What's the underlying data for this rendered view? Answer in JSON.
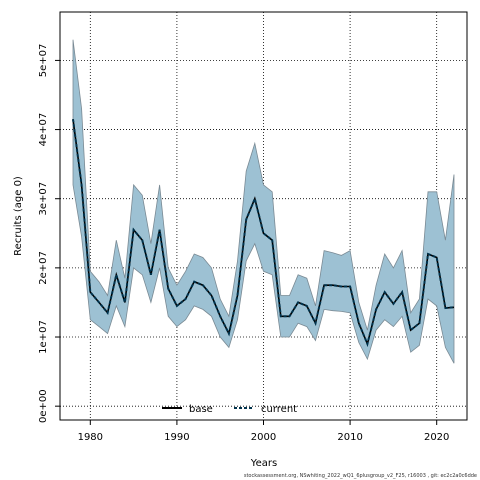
{
  "chart_data": {
    "type": "line",
    "xlabel": "Years",
    "ylabel": "Recruits (age 0)",
    "xlim": [
      1976.5,
      2023.5
    ],
    "ylim": [
      -2000000,
      57000000
    ],
    "x_ticks": [
      1980,
      1990,
      2000,
      2010,
      2020
    ],
    "x_tick_labels": [
      "1980",
      "1990",
      "2000",
      "2010",
      "2020"
    ],
    "y_ticks": [
      0,
      10000000,
      20000000,
      30000000,
      40000000,
      50000000
    ],
    "y_tick_labels": [
      "0e+00",
      "1e+07",
      "2e+07",
      "3e+07",
      "4e+07",
      "5e+07"
    ],
    "grid": true,
    "legend_position": "bottom-center",
    "colors": {
      "band": "#9dc1d3",
      "band_edge": "#7a8a94",
      "line": "#00334d"
    },
    "years": [
      1978,
      1979,
      1980,
      1981,
      1982,
      1983,
      1984,
      1985,
      1986,
      1987,
      1988,
      1989,
      1990,
      1991,
      1992,
      1993,
      1994,
      1995,
      1996,
      1997,
      1998,
      1999,
      2000,
      2001,
      2002,
      2003,
      2004,
      2005,
      2006,
      2007,
      2008,
      2009,
      2010,
      2011,
      2012,
      2013,
      2014,
      2015,
      2016,
      2017,
      2018,
      2019,
      2020,
      2021,
      2022
    ],
    "series": [
      {
        "name": "base",
        "line_style": "solid",
        "values": [
          41500000,
          32000000,
          16500000,
          15000000,
          13500000,
          19000000,
          15000000,
          25500000,
          24000000,
          19000000,
          25500000,
          17000000,
          14500000,
          15500000,
          18000000,
          17500000,
          16000000,
          13000000,
          10500000,
          16000000,
          27000000,
          30000000,
          25000000,
          24000000,
          13000000,
          13000000,
          15000000,
          14500000,
          12000000,
          17500000,
          17500000,
          17300000,
          17300000,
          12000000,
          9000000,
          14000000,
          16500000,
          14800000,
          16500000,
          11000000,
          12000000,
          22000000,
          21500000,
          14200000,
          14300000
        ]
      },
      {
        "name": "current",
        "line_style": "dashed",
        "values": [
          41500000,
          32000000,
          16500000,
          15000000,
          13500000,
          19000000,
          15000000,
          25500000,
          24000000,
          19000000,
          25500000,
          17000000,
          14500000,
          15500000,
          18000000,
          17500000,
          16000000,
          13000000,
          10500000,
          16000000,
          27000000,
          30000000,
          25000000,
          24000000,
          13000000,
          13000000,
          15000000,
          14500000,
          12000000,
          17500000,
          17500000,
          17300000,
          17300000,
          12000000,
          9000000,
          14000000,
          16500000,
          14800000,
          16500000,
          11000000,
          12000000,
          22000000,
          21500000,
          14200000,
          14300000
        ]
      }
    ],
    "band": {
      "upper": [
        53000000,
        43000000,
        19500000,
        18000000,
        16000000,
        24000000,
        18500000,
        32000000,
        30500000,
        23500000,
        32000000,
        20000000,
        17500000,
        19500000,
        22000000,
        21500000,
        20000000,
        15500000,
        13000000,
        21000000,
        34000000,
        38000000,
        32000000,
        31000000,
        16000000,
        16000000,
        19000000,
        18500000,
        14500000,
        22500000,
        22200000,
        21800000,
        22500000,
        15000000,
        11000000,
        17500000,
        22000000,
        20000000,
        22500000,
        13500000,
        15500000,
        31000000,
        31000000,
        24000000,
        33500000
      ],
      "lower": [
        32000000,
        24500000,
        12500000,
        11500000,
        10500000,
        14500000,
        11500000,
        20000000,
        19000000,
        15000000,
        20000000,
        13000000,
        11500000,
        12500000,
        14500000,
        14000000,
        13000000,
        10000000,
        8500000,
        12500000,
        21000000,
        23500000,
        19500000,
        19000000,
        10000000,
        10000000,
        12000000,
        11500000,
        9500000,
        14000000,
        13800000,
        13700000,
        13500000,
        9200000,
        6800000,
        11000000,
        12500000,
        11500000,
        13000000,
        7800000,
        8800000,
        15500000,
        14500000,
        8500000,
        6200000
      ]
    }
  },
  "legend": {
    "base": "base",
    "current": "current"
  },
  "footer": "stockassessment.org, NSwhiting_2022_wQ1_6plusgroup_v2_F25, r16003 , git: ec2c2a0c6dde"
}
